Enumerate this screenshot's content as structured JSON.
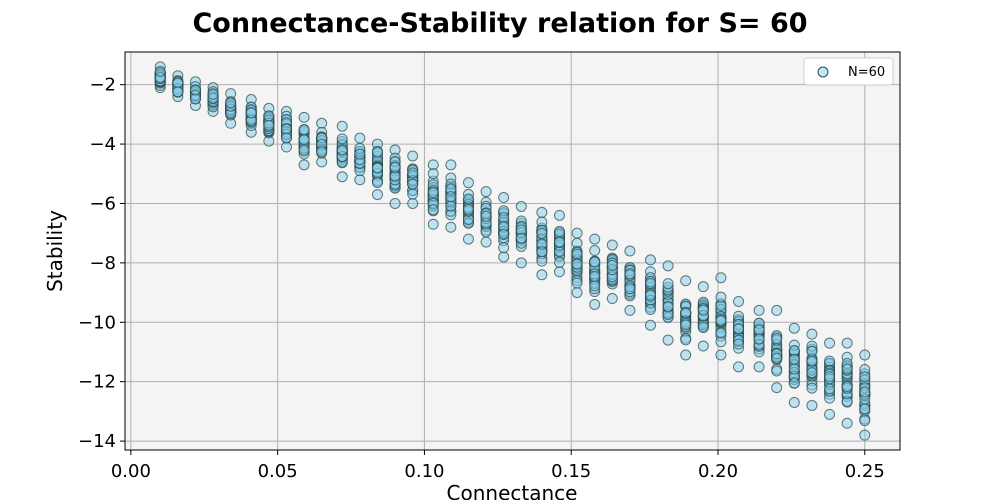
{
  "chart_data": {
    "type": "scatter",
    "title": "Connectance-Stability relation for S= 60",
    "xlabel": "Connectance",
    "ylabel": "Stability",
    "xlim": [
      -0.002,
      0.262
    ],
    "ylim": [
      -14.3,
      -0.9
    ],
    "xticks": [
      0.0,
      0.05,
      0.1,
      0.15,
      0.2,
      0.25
    ],
    "xtick_labels": [
      "0.00",
      "0.05",
      "0.10",
      "0.15",
      "0.20",
      "0.25"
    ],
    "yticks": [
      -2,
      -4,
      -6,
      -8,
      -10,
      -12,
      -14
    ],
    "ytick_labels": [
      "−2",
      "−4",
      "−6",
      "−8",
      "−10",
      "−12",
      "−14"
    ],
    "grid": true,
    "legend_position": "top-right",
    "colors": {
      "point_fill": "#87ceeb",
      "point_edge": "#2f4f4f",
      "plot_bg": "#f4f4f4",
      "grid": "#b0b0b0"
    },
    "series": [
      {
        "name": "N=60",
        "groups": [
          {
            "x": 0.01,
            "min": -2.1,
            "max": -1.4
          },
          {
            "x": 0.016,
            "min": -2.4,
            "max": -1.7
          },
          {
            "x": 0.022,
            "min": -2.7,
            "max": -1.9
          },
          {
            "x": 0.028,
            "min": -2.9,
            "max": -2.1
          },
          {
            "x": 0.034,
            "min": -3.3,
            "max": -2.3
          },
          {
            "x": 0.041,
            "min": -3.6,
            "max": -2.5
          },
          {
            "x": 0.047,
            "min": -3.9,
            "max": -2.8
          },
          {
            "x": 0.053,
            "min": -4.1,
            "max": -2.9
          },
          {
            "x": 0.059,
            "min": -4.7,
            "max": -3.1
          },
          {
            "x": 0.065,
            "min": -4.6,
            "max": -3.3
          },
          {
            "x": 0.072,
            "min": -5.1,
            "max": -3.4
          },
          {
            "x": 0.078,
            "min": -5.2,
            "max": -3.8
          },
          {
            "x": 0.084,
            "min": -5.7,
            "max": -4.0
          },
          {
            "x": 0.09,
            "min": -6.0,
            "max": -4.2
          },
          {
            "x": 0.096,
            "min": -6.0,
            "max": -4.4
          },
          {
            "x": 0.103,
            "min": -6.7,
            "max": -4.7
          },
          {
            "x": 0.109,
            "min": -6.8,
            "max": -4.7
          },
          {
            "x": 0.115,
            "min": -7.2,
            "max": -5.3
          },
          {
            "x": 0.121,
            "min": -7.3,
            "max": -5.6
          },
          {
            "x": 0.127,
            "min": -7.8,
            "max": -5.8
          },
          {
            "x": 0.133,
            "min": -8.0,
            "max": -6.1
          },
          {
            "x": 0.14,
            "min": -8.4,
            "max": -6.3
          },
          {
            "x": 0.146,
            "min": -8.3,
            "max": -6.4
          },
          {
            "x": 0.152,
            "min": -9.0,
            "max": -7.0
          },
          {
            "x": 0.158,
            "min": -9.4,
            "max": -7.2
          },
          {
            "x": 0.164,
            "min": -9.2,
            "max": -7.4
          },
          {
            "x": 0.17,
            "min": -9.6,
            "max": -7.6
          },
          {
            "x": 0.177,
            "min": -10.1,
            "max": -7.9
          },
          {
            "x": 0.183,
            "min": -10.6,
            "max": -8.1
          },
          {
            "x": 0.189,
            "min": -11.1,
            "max": -8.6
          },
          {
            "x": 0.195,
            "min": -10.8,
            "max": -8.8
          },
          {
            "x": 0.201,
            "min": -11.1,
            "max": -8.5
          },
          {
            "x": 0.207,
            "min": -11.5,
            "max": -9.3
          },
          {
            "x": 0.214,
            "min": -11.5,
            "max": -9.6
          },
          {
            "x": 0.22,
            "min": -12.2,
            "max": -9.6
          },
          {
            "x": 0.226,
            "min": -12.7,
            "max": -10.2
          },
          {
            "x": 0.232,
            "min": -12.8,
            "max": -10.4
          },
          {
            "x": 0.238,
            "min": -13.1,
            "max": -10.7
          },
          {
            "x": 0.244,
            "min": -13.4,
            "max": -10.7
          },
          {
            "x": 0.25,
            "min": -13.8,
            "max": -11.1
          }
        ]
      }
    ]
  }
}
